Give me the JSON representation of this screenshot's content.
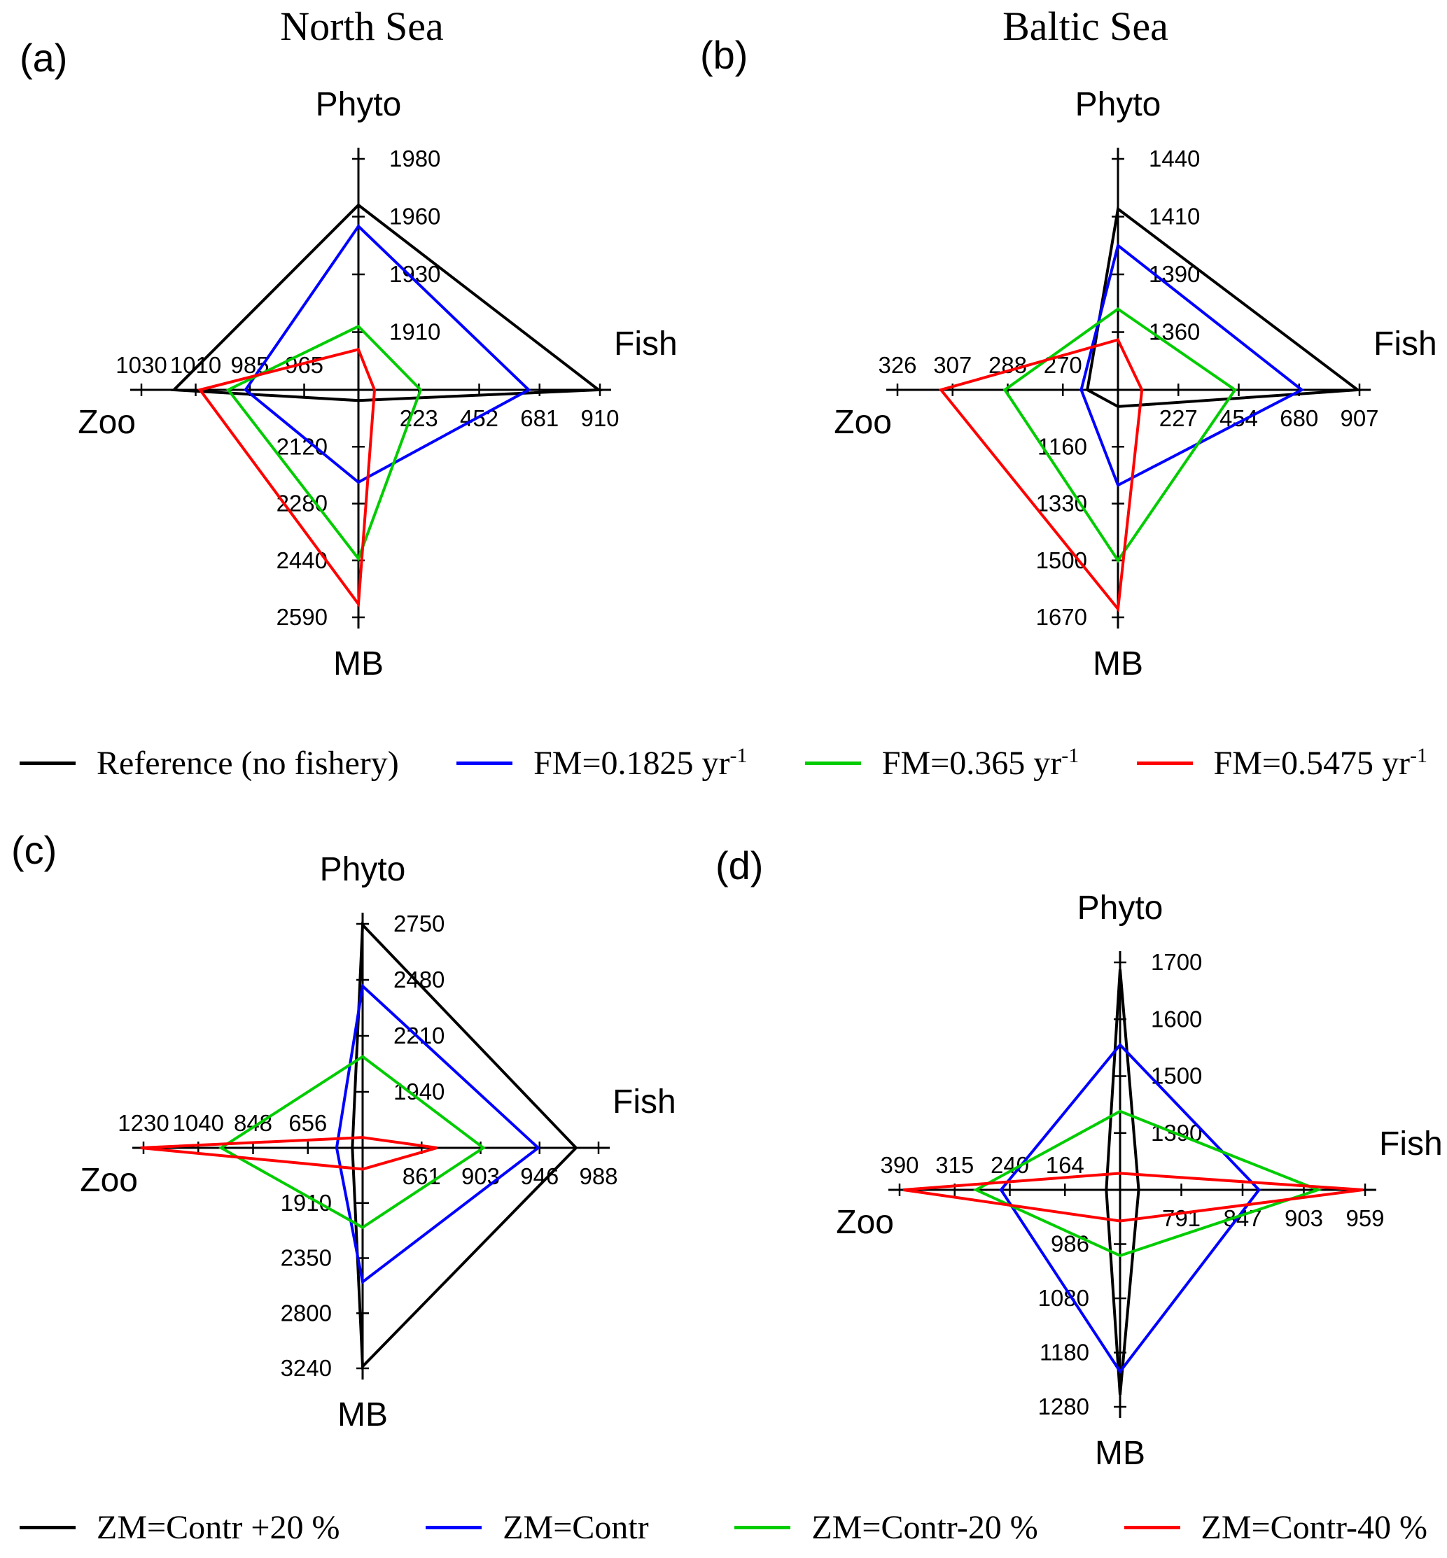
{
  "page": {
    "group_titles": {
      "left": "North Sea",
      "right": "Baltic Sea"
    },
    "panel_labels": {
      "a": "(a)",
      "b": "(b)",
      "c": "(c)",
      "d": "(d)"
    }
  },
  "colors": {
    "black": "#000000",
    "blue": "#0000ff",
    "green": "#00cc00",
    "red": "#ff0000"
  },
  "legend_fm": {
    "items": [
      {
        "label": "Reference (no fishery)",
        "sup": "",
        "color": "#000000"
      },
      {
        "label": "FM=0.1825 yr",
        "sup": "-1",
        "color": "#0000ff"
      },
      {
        "label": "FM=0.365 yr",
        "sup": "-1",
        "color": "#00cc00"
      },
      {
        "label": "FM=0.5475 yr",
        "sup": "-1",
        "color": "#ff0000"
      }
    ]
  },
  "legend_zm": {
    "items": [
      {
        "label": "ZM=Contr +20 %",
        "color": "#000000"
      },
      {
        "label": "ZM=Contr",
        "color": "#0000ff"
      },
      {
        "label": "ZM=Contr-20 %",
        "color": "#00cc00"
      },
      {
        "label": "ZM=Contr-40 %",
        "color": "#ff0000"
      }
    ]
  },
  "chart_data": [
    {
      "id": "a",
      "panel_label": "(a)",
      "region": "North Sea",
      "type": "radar",
      "axes": [
        {
          "name": "Phyto",
          "direction": "up",
          "ticks": [
            1910,
            1930,
            1960,
            1980
          ]
        },
        {
          "name": "Fish",
          "direction": "right",
          "ticks": [
            223,
            452,
            681,
            910
          ]
        },
        {
          "name": "MB",
          "direction": "down",
          "ticks": [
            2120,
            2280,
            2440,
            2590
          ]
        },
        {
          "name": "Zoo",
          "direction": "left",
          "ticks": [
            965,
            985,
            1010,
            1030
          ]
        }
      ],
      "series": [
        {
          "name": "Reference (no fishery)",
          "color": "#000000",
          "values": {
            "Phyto": 1964,
            "Fish": 905,
            "MB": 1990,
            "Zoo": 1018
          }
        },
        {
          "name": "FM=0.1825 yr-1",
          "color": "#0000ff",
          "values": {
            "Phyto": 1955,
            "Fish": 640,
            "MB": 2220,
            "Zoo": 987
          }
        },
        {
          "name": "FM=0.365 yr-1",
          "color": "#00cc00",
          "values": {
            "Phyto": 1912,
            "Fish": 230,
            "MB": 2435,
            "Zoo": 995
          }
        },
        {
          "name": "FM=0.5475 yr-1",
          "color": "#ff0000",
          "values": {
            "Phyto": 1904,
            "Fish": 55,
            "MB": 2555,
            "Zoo": 1008
          }
        }
      ]
    },
    {
      "id": "b",
      "panel_label": "(b)",
      "region": "Baltic Sea",
      "type": "radar",
      "axes": [
        {
          "name": "Phyto",
          "direction": "up",
          "ticks": [
            1360,
            1390,
            1410,
            1440
          ]
        },
        {
          "name": "Fish",
          "direction": "right",
          "ticks": [
            227,
            454,
            680,
            907
          ]
        },
        {
          "name": "MB",
          "direction": "down",
          "ticks": [
            1160,
            1330,
            1500,
            1670
          ]
        },
        {
          "name": "Zoo",
          "direction": "left",
          "ticks": [
            270,
            288,
            307,
            326
          ]
        }
      ],
      "series": [
        {
          "name": "Reference (no fishery)",
          "color": "#000000",
          "values": {
            "Phyto": 1414,
            "Fish": 900,
            "MB": 1040,
            "Zoo": 262
          }
        },
        {
          "name": "FM=0.1825 yr-1",
          "color": "#0000ff",
          "values": {
            "Phyto": 1400,
            "Fish": 690,
            "MB": 1275,
            "Zoo": 264
          }
        },
        {
          "name": "FM=0.365 yr-1",
          "color": "#00cc00",
          "values": {
            "Phyto": 1372,
            "Fish": 440,
            "MB": 1500,
            "Zoo": 289
          }
        },
        {
          "name": "FM=0.5475 yr-1",
          "color": "#ff0000",
          "values": {
            "Phyto": 1356,
            "Fish": 90,
            "MB": 1645,
            "Zoo": 311
          }
        }
      ]
    },
    {
      "id": "c",
      "panel_label": "(c)",
      "region": "North Sea",
      "type": "radar",
      "axes": [
        {
          "name": "Phyto",
          "direction": "up",
          "ticks": [
            1940,
            2210,
            2480,
            2750
          ]
        },
        {
          "name": "Fish",
          "direction": "right",
          "ticks": [
            861,
            903,
            946,
            988
          ]
        },
        {
          "name": "MB",
          "direction": "down",
          "ticks": [
            1910,
            2350,
            2800,
            3240
          ]
        },
        {
          "name": "Zoo",
          "direction": "left",
          "ticks": [
            656,
            848,
            1040,
            1230
          ]
        }
      ],
      "series": [
        {
          "name": "ZM=Contr +20 %",
          "color": "#000000",
          "values": {
            "Phyto": 2745,
            "Fish": 972,
            "MB": 3225,
            "Zoo": 500
          }
        },
        {
          "name": "ZM=Contr",
          "color": "#0000ff",
          "values": {
            "Phyto": 2450,
            "Fish": 945,
            "MB": 2545,
            "Zoo": 555
          }
        },
        {
          "name": "ZM=Contr-20 %",
          "color": "#00cc00",
          "values": {
            "Phyto": 2110,
            "Fish": 905,
            "MB": 2105,
            "Zoo": 960
          }
        },
        {
          "name": "ZM=Contr-40 %",
          "color": "#ff0000",
          "values": {
            "Phyto": 1720,
            "Fish": 872,
            "MB": 1640,
            "Zoo": 1240
          }
        }
      ]
    },
    {
      "id": "d",
      "panel_label": "(d)",
      "region": "Baltic Sea",
      "type": "radar",
      "axes": [
        {
          "name": "Phyto",
          "direction": "up",
          "ticks": [
            1390,
            1500,
            1600,
            1700
          ]
        },
        {
          "name": "Fish",
          "direction": "right",
          "ticks": [
            791,
            847,
            903,
            959
          ]
        },
        {
          "name": "MB",
          "direction": "down",
          "ticks": [
            986,
            1080,
            1180,
            1280
          ]
        },
        {
          "name": "Zoo",
          "direction": "left",
          "ticks": [
            164,
            240,
            315,
            390
          ]
        }
      ],
      "series": [
        {
          "name": "ZM=Contr +20 %",
          "color": "#000000",
          "values": {
            "Phyto": 1688,
            "Fish": 752,
            "MB": 1258,
            "Zoo": 107
          }
        },
        {
          "name": "ZM=Contr",
          "color": "#0000ff",
          "values": {
            "Phyto": 1555,
            "Fish": 862,
            "MB": 1215,
            "Zoo": 252
          }
        },
        {
          "name": "ZM=Contr-20 %",
          "color": "#00cc00",
          "values": {
            "Phyto": 1432,
            "Fish": 916,
            "MB": 1006,
            "Zoo": 286
          }
        },
        {
          "name": "ZM=Contr-40 %",
          "color": "#ff0000",
          "values": {
            "Phyto": 1312,
            "Fish": 957,
            "MB": 946,
            "Zoo": 385
          }
        }
      ]
    }
  ]
}
